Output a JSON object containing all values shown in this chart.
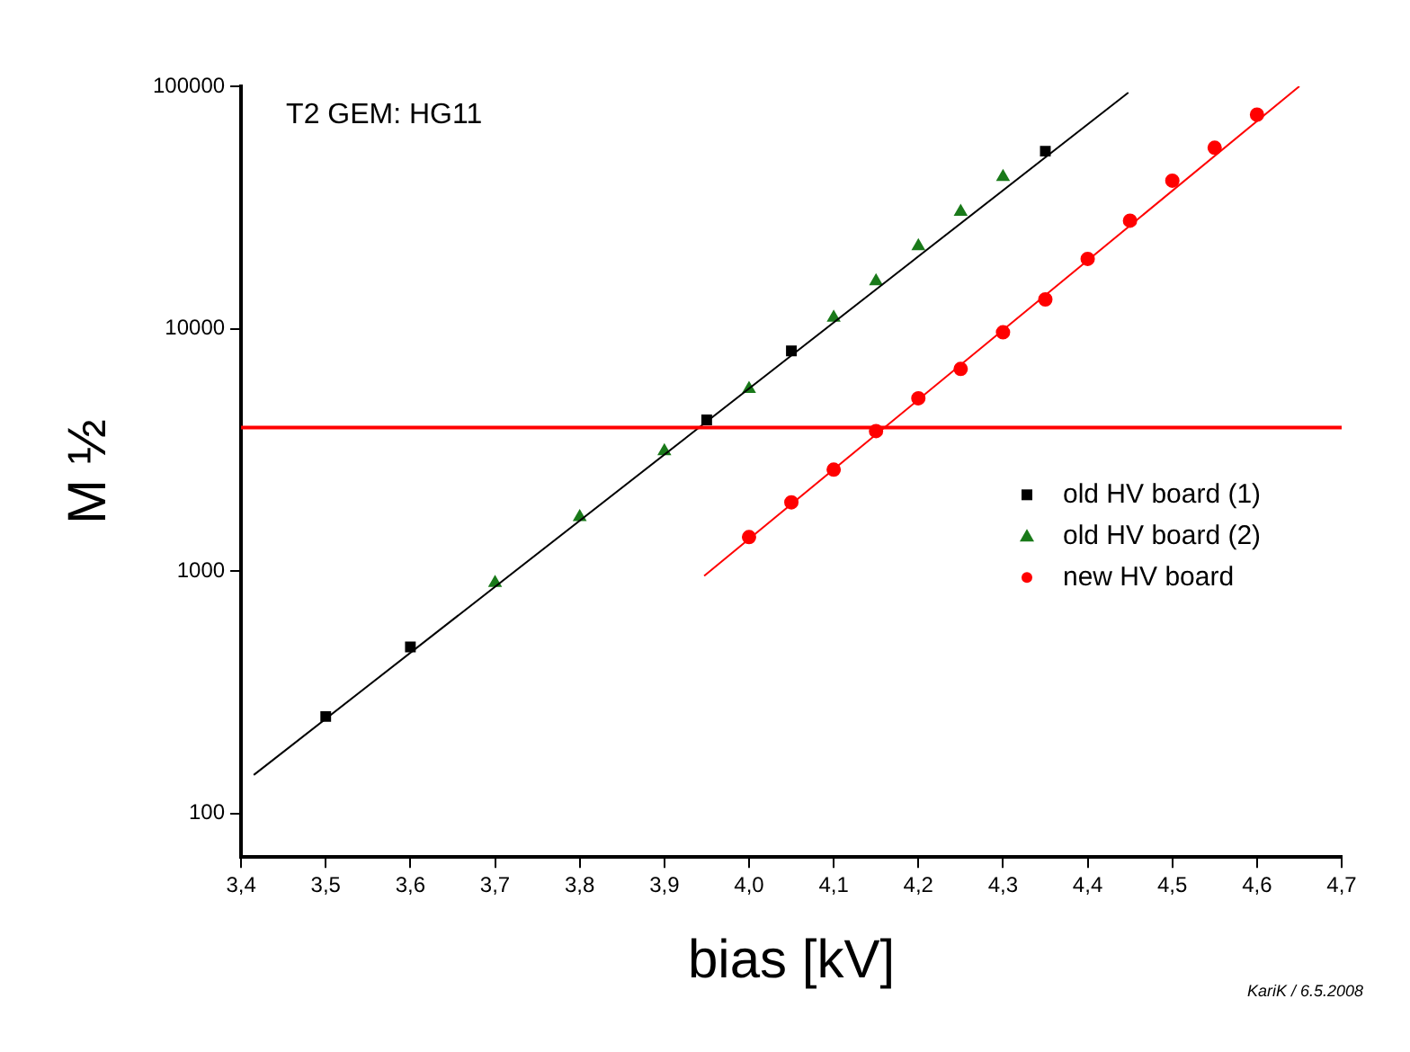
{
  "chart_data": {
    "type": "scatter",
    "xlabel": "bias [kV]",
    "ylabel": "M ½",
    "annotations": [
      "T2 GEM: HG11",
      "KariK / 6.5.2008"
    ],
    "log": "y",
    "grid": false,
    "legend": "right",
    "xlim": [
      3.4,
      4.7
    ],
    "xticks": [
      {
        "value": 3.4,
        "label": "3,4"
      },
      {
        "value": 3.5,
        "label": "3,5"
      },
      {
        "value": 3.6,
        "label": "3,6"
      },
      {
        "value": 3.7,
        "label": "3,7"
      },
      {
        "value": 3.8,
        "label": "3,8"
      },
      {
        "value": 3.9,
        "label": "3,9"
      },
      {
        "value": 4.0,
        "label": "4,0"
      },
      {
        "value": 4.1,
        "label": "4,1"
      },
      {
        "value": 4.2,
        "label": "4,2"
      },
      {
        "value": 4.3,
        "label": "4,3"
      },
      {
        "value": 4.4,
        "label": "4,4"
      },
      {
        "value": 4.5,
        "label": "4,5"
      },
      {
        "value": 4.6,
        "label": "4,6"
      },
      {
        "value": 4.7,
        "label": "4,7"
      }
    ],
    "ylim": [
      66,
      100000
    ],
    "yticks": [
      100,
      1000,
      10000,
      100000
    ],
    "ref_lines": [
      {
        "axis": "y",
        "value": 3910,
        "color": "#ff0000"
      }
    ],
    "series": [
      {
        "type": "line",
        "color": "#000000",
        "marker": "none",
        "x": [
          3.415,
          4.448
        ],
        "values": [
          144,
          94200
        ]
      },
      {
        "type": "line",
        "color": "#ff0000",
        "marker": "none",
        "x": [
          3.947,
          4.65
        ],
        "values": [
          955,
          100000
        ]
      },
      {
        "name": "old HV board (1)",
        "color": "#000000",
        "marker": "square",
        "x": [
          3.5,
          3.6,
          3.95,
          4.05,
          4.35
        ],
        "values": [
          251,
          486,
          4200,
          8100,
          54000
        ]
      },
      {
        "name": "old HV board (2)",
        "color": "#1a7a1a",
        "marker": "triangle",
        "x": [
          3.7,
          3.8,
          3.9,
          4.0,
          4.1,
          4.15,
          4.2,
          4.25,
          4.3
        ],
        "values": [
          893,
          1670,
          3120,
          5640,
          11100,
          15700,
          21900,
          30400,
          42300
        ]
      },
      {
        "name": "new HV board",
        "color": "#ff0000",
        "marker": "circle",
        "x": [
          4.0,
          4.05,
          4.1,
          4.15,
          4.2,
          4.25,
          4.3,
          4.35,
          4.4,
          4.45,
          4.5,
          4.55,
          4.6
        ],
        "values": [
          1380,
          1920,
          2620,
          3780,
          5160,
          6820,
          9660,
          13200,
          19400,
          27900,
          40800,
          55800,
          76400
        ]
      }
    ]
  }
}
